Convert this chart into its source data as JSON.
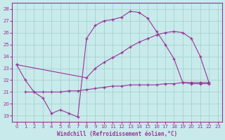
{
  "title": "",
  "xlabel": "Windchill (Refroidissement éolien,°C)",
  "ylabel": "",
  "xlim": [
    -0.5,
    23.5
  ],
  "ylim": [
    18.5,
    28.5
  ],
  "xticks": [
    0,
    1,
    2,
    3,
    4,
    5,
    6,
    7,
    8,
    9,
    10,
    11,
    12,
    13,
    14,
    15,
    16,
    17,
    18,
    19,
    20,
    21,
    22,
    23
  ],
  "yticks": [
    19,
    20,
    21,
    22,
    23,
    24,
    25,
    26,
    27,
    28
  ],
  "bg_color": "#c8eaea",
  "line_color": "#993399",
  "grid_color": "#a0cccc",
  "line1_x": [
    0,
    1,
    2,
    3,
    4,
    5,
    6,
    7,
    8,
    9,
    10,
    11,
    12,
    13,
    14,
    15,
    16,
    17,
    18,
    19,
    20,
    21,
    22
  ],
  "line1_y": [
    23.3,
    22.0,
    21.0,
    20.5,
    19.2,
    19.5,
    19.2,
    18.9,
    25.5,
    26.6,
    27.0,
    27.1,
    27.3,
    27.8,
    27.7,
    27.2,
    26.1,
    25.0,
    23.8,
    21.8,
    21.7,
    21.7,
    21.7
  ],
  "line2_x": [
    0,
    8,
    9,
    10,
    11,
    12,
    13,
    14,
    15,
    16,
    17,
    18,
    19,
    20,
    21,
    22
  ],
  "line2_y": [
    23.3,
    22.2,
    23.0,
    23.5,
    23.9,
    24.3,
    24.8,
    25.2,
    25.5,
    25.8,
    26.0,
    26.1,
    26.0,
    25.5,
    24.0,
    21.8
  ],
  "line3_x": [
    1,
    2,
    3,
    4,
    5,
    6,
    7,
    8,
    9,
    10,
    11,
    12,
    13,
    14,
    15,
    16,
    17,
    18,
    19,
    20,
    21,
    22
  ],
  "line3_y": [
    21.0,
    21.0,
    21.0,
    21.0,
    21.0,
    21.1,
    21.1,
    21.2,
    21.3,
    21.4,
    21.5,
    21.5,
    21.6,
    21.6,
    21.6,
    21.6,
    21.7,
    21.7,
    21.8,
    21.8,
    21.8,
    21.8
  ]
}
